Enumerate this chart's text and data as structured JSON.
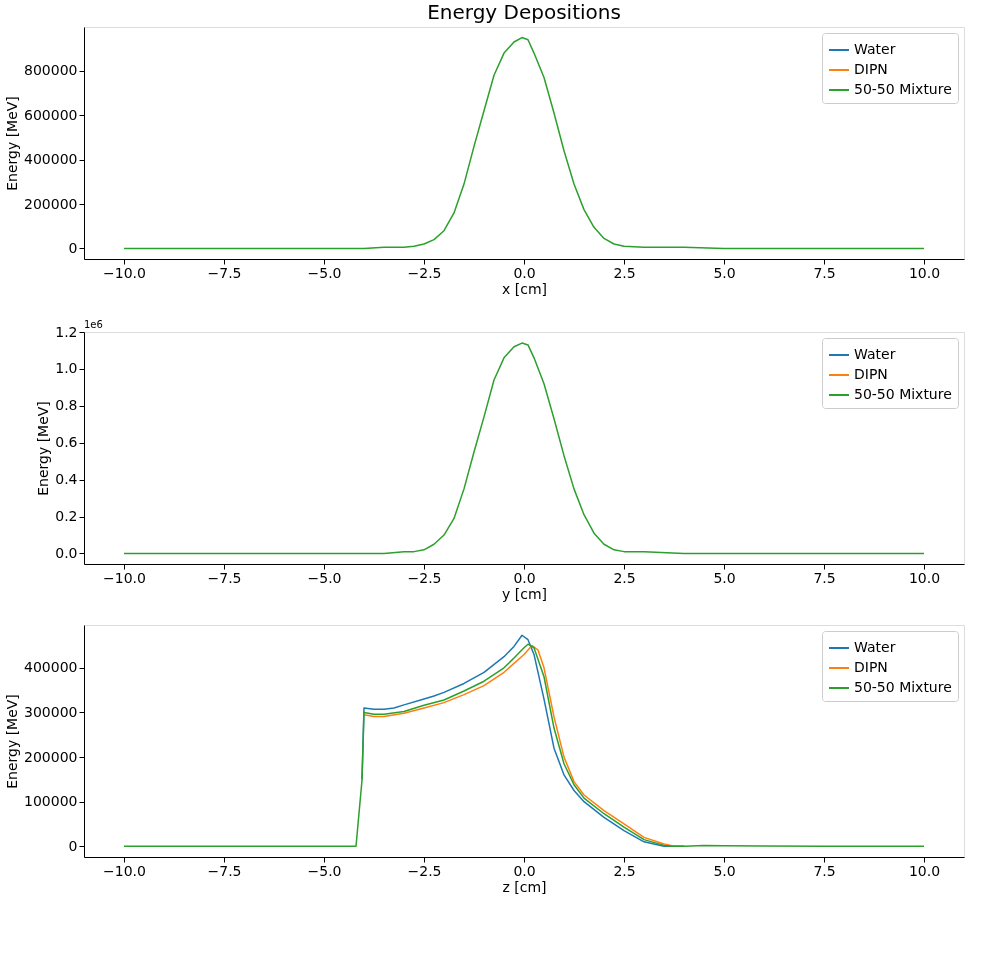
{
  "chart_data": [
    {
      "type": "line",
      "title": "Energy Depositions",
      "xlabel": "x [cm]",
      "ylabel": "Energy [MeV]",
      "legend": "top right",
      "grid": false,
      "xlim": [
        -11,
        11
      ],
      "xticks": [
        {
          "value": -10,
          "label": "−10.0"
        },
        {
          "value": -7.5,
          "label": "−7.5"
        },
        {
          "value": -5,
          "label": "−5.0"
        },
        {
          "value": -2.5,
          "label": "−2.5"
        },
        {
          "value": 0,
          "label": "0.0"
        },
        {
          "value": 2.5,
          "label": "2.5"
        },
        {
          "value": 5,
          "label": "5.0"
        },
        {
          "value": 7.5,
          "label": "7.5"
        },
        {
          "value": 10,
          "label": "10.0"
        }
      ],
      "ylim": [
        -47500,
        997500
      ],
      "yticks": [
        0,
        200000,
        400000,
        600000,
        800000
      ],
      "x": [
        -10,
        -7.5,
        -5,
        -4,
        -3.5,
        -3,
        -2.75,
        -2.5,
        -2.25,
        -2,
        -1.75,
        -1.5,
        -1.25,
        -1,
        -0.75,
        -0.5,
        -0.25,
        -0.05,
        0.1,
        0.25,
        0.5,
        0.75,
        1,
        1.25,
        1.5,
        1.75,
        2,
        2.25,
        2.5,
        3,
        4,
        5,
        7.5,
        10
      ],
      "series": [
        {
          "name": "Water",
          "color": "#1f77b4",
          "values": [
            null,
            null,
            null,
            null,
            null,
            null,
            null,
            null,
            null,
            null,
            null,
            null,
            null,
            null,
            null,
            null,
            null,
            null,
            null,
            null,
            null,
            null,
            null,
            null,
            null,
            null,
            null,
            null,
            null,
            null,
            null,
            null,
            null,
            null
          ]
        },
        {
          "name": "DIPN",
          "color": "#ff7f0e",
          "values": [
            null,
            null,
            null,
            null,
            null,
            null,
            null,
            null,
            null,
            null,
            null,
            null,
            null,
            null,
            null,
            null,
            null,
            null,
            null,
            null,
            null,
            null,
            null,
            null,
            null,
            null,
            null,
            null,
            null,
            null,
            null,
            null,
            null,
            null
          ]
        },
        {
          "name": "50-50 Mixture",
          "color": "#2ca02c",
          "values": [
            0,
            0,
            0,
            0,
            5000,
            5000,
            10000,
            20000,
            40000,
            80000,
            160000,
            290000,
            460000,
            620000,
            780000,
            880000,
            930000,
            950000,
            940000,
            880000,
            770000,
            610000,
            440000,
            290000,
            175000,
            95000,
            45000,
            20000,
            10000,
            5000,
            5000,
            0,
            0,
            0
          ]
        }
      ]
    },
    {
      "type": "line",
      "xlabel": "y [cm]",
      "ylabel": "Energy [MeV]",
      "legend": "top right",
      "grid": false,
      "annotations": [
        "1e6"
      ],
      "xlim": [
        -11,
        11
      ],
      "xticks": [
        {
          "value": -10,
          "label": "−10.0"
        },
        {
          "value": -7.5,
          "label": "−7.5"
        },
        {
          "value": -5,
          "label": "−5.0"
        },
        {
          "value": -2.5,
          "label": "−2.5"
        },
        {
          "value": 0,
          "label": "0.0"
        },
        {
          "value": 2.5,
          "label": "2.5"
        },
        {
          "value": 5,
          "label": "5.0"
        },
        {
          "value": 7.5,
          "label": "7.5"
        },
        {
          "value": 10,
          "label": "10.0"
        }
      ],
      "ylim": [
        -0.057,
        1.2
      ],
      "yticks": [
        {
          "value": 0,
          "label": "0.0"
        },
        {
          "value": 0.2,
          "label": "0.2"
        },
        {
          "value": 0.4,
          "label": "0.4"
        },
        {
          "value": 0.6,
          "label": "0.6"
        },
        {
          "value": 0.8,
          "label": "0.8"
        },
        {
          "value": 1,
          "label": "1.0"
        },
        {
          "value": 1.2,
          "label": "1.2"
        }
      ],
      "x": [
        -10,
        -7.5,
        -5,
        -4,
        -3.5,
        -3,
        -2.75,
        -2.5,
        -2.25,
        -2,
        -1.75,
        -1.5,
        -1.25,
        -1,
        -0.75,
        -0.5,
        -0.25,
        -0.05,
        0.1,
        0.25,
        0.5,
        0.75,
        1,
        1.25,
        1.5,
        1.75,
        2,
        2.25,
        2.5,
        3,
        4,
        5,
        7.5,
        10
      ],
      "series": [
        {
          "name": "Water",
          "color": "#1f77b4",
          "values": [
            null,
            null,
            null,
            null,
            null,
            null,
            null,
            null,
            null,
            null,
            null,
            null,
            null,
            null,
            null,
            null,
            null,
            null,
            null,
            null,
            null,
            null,
            null,
            null,
            null,
            null,
            null,
            null,
            null,
            null,
            null,
            null,
            null,
            null
          ]
        },
        {
          "name": "DIPN",
          "color": "#ff7f0e",
          "values": [
            null,
            null,
            null,
            null,
            null,
            null,
            null,
            null,
            null,
            null,
            null,
            null,
            null,
            null,
            null,
            null,
            null,
            null,
            null,
            null,
            null,
            null,
            null,
            null,
            null,
            null,
            null,
            null,
            null,
            null,
            null,
            null,
            null,
            null
          ]
        },
        {
          "name": "50-50 Mixture",
          "color": "#2ca02c",
          "values": [
            0,
            0,
            0,
            0,
            0,
            0.01,
            0.01,
            0.02,
            0.05,
            0.1,
            0.19,
            0.35,
            0.55,
            0.74,
            0.94,
            1.06,
            1.12,
            1.14,
            1.13,
            1.06,
            0.92,
            0.73,
            0.53,
            0.35,
            0.21,
            0.11,
            0.05,
            0.02,
            0.01,
            0.01,
            0,
            0,
            0,
            0
          ]
        }
      ]
    },
    {
      "type": "line",
      "xlabel": "z [cm]",
      "ylabel": "Energy [MeV]",
      "legend": "top right",
      "grid": false,
      "xlim": [
        -11,
        11
      ],
      "xticks": [
        {
          "value": -10,
          "label": "−10.0"
        },
        {
          "value": -7.5,
          "label": "−7.5"
        },
        {
          "value": -5,
          "label": "−5.0"
        },
        {
          "value": -2.5,
          "label": "−2.5"
        },
        {
          "value": 0,
          "label": "0.0"
        },
        {
          "value": 2.5,
          "label": "2.5"
        },
        {
          "value": 5,
          "label": "5.0"
        },
        {
          "value": 7.5,
          "label": "7.5"
        },
        {
          "value": 10,
          "label": "10.0"
        }
      ],
      "ylim": [
        -24000,
        496000
      ],
      "yticks": [
        0,
        100000,
        200000,
        300000,
        400000
      ],
      "series": [
        {
          "name": "Water",
          "color": "#1f77b4",
          "x": [
            -4.05,
            -4,
            -3.75,
            -3.5,
            -3.25,
            -3,
            -2.5,
            -2.25,
            -2,
            -1.5,
            -1,
            -0.5,
            -0.25,
            -0.05,
            0.1,
            0.25,
            0.5,
            0.75,
            1,
            1.25,
            1.5,
            2,
            2.5,
            3,
            3.5,
            4
          ],
          "values": [
            150000,
            310000,
            307000,
            307000,
            310000,
            317000,
            330000,
            337000,
            345000,
            365000,
            390000,
            425000,
            448000,
            473000,
            463000,
            430000,
            330000,
            220000,
            160000,
            125000,
            100000,
            65000,
            35000,
            10000,
            0,
            0
          ]
        },
        {
          "name": "DIPN",
          "color": "#ff7f0e",
          "x": [
            -4,
            -3.75,
            -3.5,
            -3,
            -2.5,
            -2,
            -1.5,
            -1,
            -0.5,
            -0.25,
            0,
            0.2,
            0.35,
            0.5,
            0.75,
            1,
            1.25,
            1.5,
            2,
            2.5,
            3,
            3.5,
            3.75,
            4
          ],
          "values": [
            295000,
            291000,
            291000,
            298000,
            310000,
            322000,
            340000,
            360000,
            390000,
            410000,
            430000,
            450000,
            440000,
            400000,
            290000,
            200000,
            145000,
            115000,
            80000,
            50000,
            20000,
            5000,
            0,
            0
          ]
        },
        {
          "name": "50-50 Mixture",
          "color": "#2ca02c",
          "x": [
            -10,
            -7.5,
            -5,
            -4.2,
            -4.05,
            -4,
            -3.75,
            -3.5,
            -3,
            -2.5,
            -2,
            -1.5,
            -1,
            -0.5,
            -0.25,
            0,
            0.1,
            0.25,
            0.5,
            0.75,
            1,
            1.25,
            1.5,
            2,
            2.5,
            3,
            3.5,
            3.75,
            4,
            4.5,
            5,
            7.5,
            10
          ],
          "values": [
            0,
            0,
            0,
            0,
            148000,
            300000,
            296000,
            296000,
            302000,
            316000,
            328000,
            348000,
            370000,
            400000,
            422000,
            445000,
            453000,
            445000,
            380000,
            265000,
            185000,
            138000,
            108000,
            73000,
            43000,
            15000,
            2000,
            0,
            0,
            2000,
            1000,
            0,
            0
          ]
        }
      ]
    }
  ]
}
